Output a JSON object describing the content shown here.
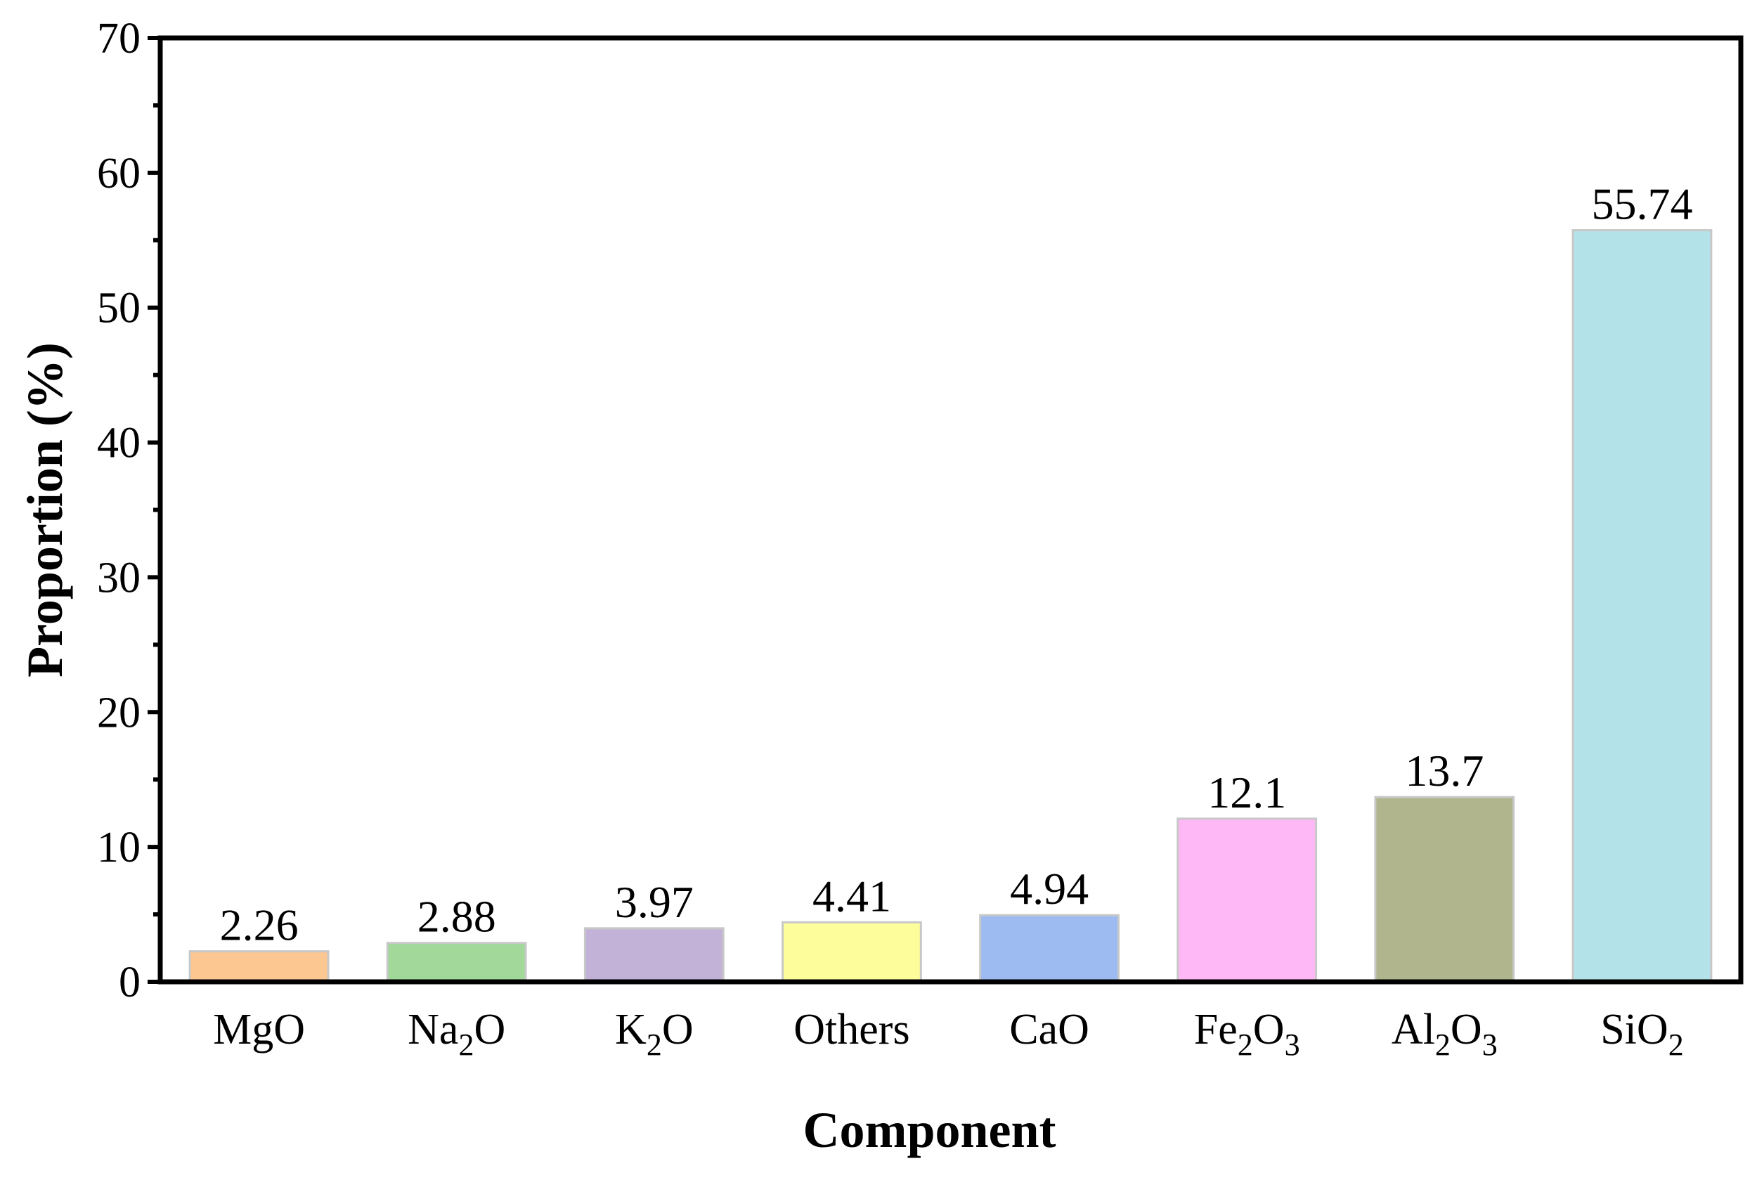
{
  "chart_data": {
    "type": "bar",
    "xlabel": "Component",
    "ylabel": "Proportion (%)",
    "ylim": [
      0,
      70
    ],
    "yticks": [
      0,
      10,
      20,
      30,
      40,
      50,
      60,
      70
    ],
    "yticks_text": [
      "0",
      "10",
      "20",
      "30",
      "40",
      "50",
      "60",
      "70"
    ],
    "grid": false,
    "categories": [
      "MgO",
      "Na2O",
      "K2O",
      "Others",
      "CaO",
      "Fe2O3",
      "Al2O3",
      "SiO2"
    ],
    "category_labels": [
      [
        {
          "t": "MgO",
          "sub": false
        }
      ],
      [
        {
          "t": "Na",
          "sub": false
        },
        {
          "t": "2",
          "sub": true
        },
        {
          "t": "O",
          "sub": false
        }
      ],
      [
        {
          "t": "K",
          "sub": false
        },
        {
          "t": "2",
          "sub": true
        },
        {
          "t": "O",
          "sub": false
        }
      ],
      [
        {
          "t": "Others",
          "sub": false
        }
      ],
      [
        {
          "t": "CaO",
          "sub": false
        }
      ],
      [
        {
          "t": "Fe",
          "sub": false
        },
        {
          "t": "2",
          "sub": true
        },
        {
          "t": "O",
          "sub": false
        },
        {
          "t": "3",
          "sub": true
        }
      ],
      [
        {
          "t": "Al",
          "sub": false
        },
        {
          "t": "2",
          "sub": true
        },
        {
          "t": "O",
          "sub": false
        },
        {
          "t": "3",
          "sub": true
        }
      ],
      [
        {
          "t": "Si",
          "sub": false
        },
        {
          "t": "O",
          "sub": false
        },
        {
          "t": "2",
          "sub": true
        }
      ]
    ],
    "values": [
      2.26,
      2.88,
      3.97,
      4.41,
      4.94,
      12.1,
      13.7,
      55.74
    ],
    "value_labels": [
      "2.26",
      "2.88",
      "3.97",
      "4.41",
      "4.94",
      "12.1",
      "13.7",
      "55.74"
    ],
    "colors": [
      "#FDC792",
      "#A2D99B",
      "#C3B2D8",
      "#FEFD9C",
      "#9DBBF1",
      "#FDB8F5",
      "#B1B58E",
      "#B3E3E9"
    ]
  }
}
